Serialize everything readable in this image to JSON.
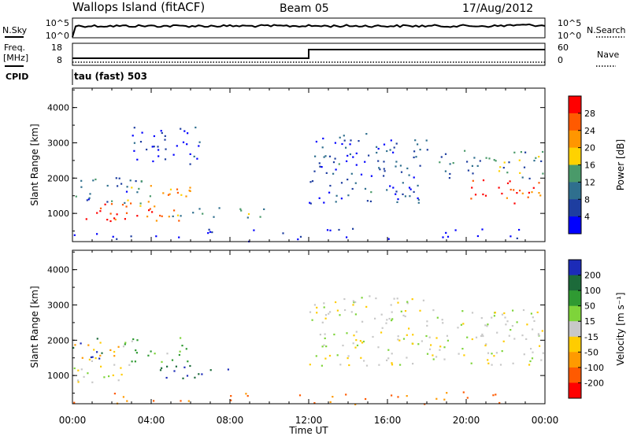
{
  "header": {
    "site": "Wallops Island (fitACF)",
    "beam": "Beam 05",
    "date": "17/Aug/2012"
  },
  "top_panels": {
    "nsky_label": "N.Sky",
    "nsky_ticks": [
      "10^5",
      "10^0"
    ],
    "nsearch_label": "N.Search",
    "nsearch_ticks": [
      "10^5",
      "10^0"
    ],
    "freq_label_line1": "Freq.",
    "freq_label_line2": "[MHz]",
    "freq_ticks": [
      "18",
      "8"
    ],
    "nave_label": "Nave",
    "nave_ticks": [
      "60",
      "0"
    ],
    "cpid_label": "CPID",
    "cpid_text": "tau (fast) 503"
  },
  "colorbars": {
    "power": {
      "label": "Power [dB]",
      "ticks": [
        "28",
        "24",
        "20",
        "16",
        "12",
        "8",
        "4"
      ],
      "colors": [
        "#ff0000",
        "#ff5a00",
        "#ff9600",
        "#ffd200",
        "#4a9a6a",
        "#2f6f8e",
        "#1e3ea0",
        "#0000ff"
      ]
    },
    "velocity": {
      "label": "Velocity [m s⁻¹]",
      "ticks": [
        "200",
        "100",
        "50",
        "15",
        "-15",
        "-50",
        "-100",
        "-200"
      ],
      "colors": [
        "#1c2bb8",
        "#1c6a3a",
        "#2f9a32",
        "#7ed43a",
        "#c8c8c8",
        "#ffcc00",
        "#ff9a00",
        "#ff5a00",
        "#ff0000"
      ]
    }
  },
  "chart_data": [
    {
      "type": "heatmap",
      "title": "Power",
      "ylabel": "Slant Range [km]",
      "yticks": [
        "1000",
        "2000",
        "3000",
        "4000"
      ],
      "ylim": [
        200,
        4550
      ],
      "xlim": [
        0,
        24
      ],
      "xticks": [
        "00:00",
        "04:00",
        "08:00",
        "12:00",
        "16:00",
        "20:00",
        "00:00"
      ],
      "colorbar_label": "Power [dB]",
      "scale": [
        4,
        8,
        12,
        16,
        20,
        24,
        28
      ],
      "echo_regions": [
        {
          "t": [
            0.0,
            5.5
          ],
          "range_km": [
            800,
            1300
          ],
          "power_db": 26
        },
        {
          "t": [
            0.0,
            3.5
          ],
          "range_km": [
            1300,
            2100
          ],
          "power_db": 10
        },
        {
          "t": [
            2.5,
            6.0
          ],
          "range_km": [
            1200,
            1900
          ],
          "power_db": 20
        },
        {
          "t": [
            5.0,
            10.0
          ],
          "range_km": [
            900,
            1200
          ],
          "power_db": 14
        },
        {
          "t": [
            3.0,
            6.5
          ],
          "range_km": [
            2400,
            3500
          ],
          "power_db": 6
        },
        {
          "t": [
            12.0,
            18.0
          ],
          "range_km": [
            1300,
            3300
          ],
          "power_db": 8
        },
        {
          "t": [
            18.5,
            24.0
          ],
          "range_km": [
            2000,
            2800
          ],
          "power_db": 12
        },
        {
          "t": [
            20.0,
            24.0
          ],
          "range_km": [
            1300,
            2000
          ],
          "power_db": 26
        },
        {
          "t": [
            0.0,
            24.0
          ],
          "range_km": [
            200,
            600
          ],
          "power_db": 4
        }
      ]
    },
    {
      "type": "heatmap",
      "title": "Velocity",
      "ylabel": "Slant Range [km]",
      "yticks": [
        "1000",
        "2000",
        "3000",
        "4000"
      ],
      "ylim": [
        200,
        4550
      ],
      "xlim": [
        0,
        24
      ],
      "xticks": [
        "00:00",
        "04:00",
        "08:00",
        "12:00",
        "16:00",
        "20:00",
        "00:00"
      ],
      "xlabel": "Time UT",
      "colorbar_label": "Velocity [m s⁻¹]",
      "scale": [
        -200,
        -100,
        -50,
        -15,
        15,
        50,
        100,
        200
      ],
      "echo_regions": [
        {
          "t": [
            0.0,
            3.0
          ],
          "range_km": [
            800,
            1500
          ],
          "velocity": 0
        },
        {
          "t": [
            0.0,
            1.5
          ],
          "range_km": [
            1500,
            2100
          ],
          "velocity": 150
        },
        {
          "t": [
            0.0,
            2.5
          ],
          "range_km": [
            1500,
            2000
          ],
          "velocity": -60
        },
        {
          "t": [
            2.5,
            6.0
          ],
          "range_km": [
            1400,
            2100
          ],
          "velocity": 40
        },
        {
          "t": [
            4.0,
            8.0
          ],
          "range_km": [
            900,
            1300
          ],
          "velocity": 150
        },
        {
          "t": [
            12.0,
            18.0
          ],
          "range_km": [
            1300,
            3300
          ],
          "velocity": 0
        },
        {
          "t": [
            18.0,
            24.0
          ],
          "range_km": [
            1300,
            2900
          ],
          "velocity": 0
        },
        {
          "t": [
            0.0,
            24.0
          ],
          "range_km": [
            200,
            600
          ],
          "velocity": -100
        }
      ]
    }
  ]
}
